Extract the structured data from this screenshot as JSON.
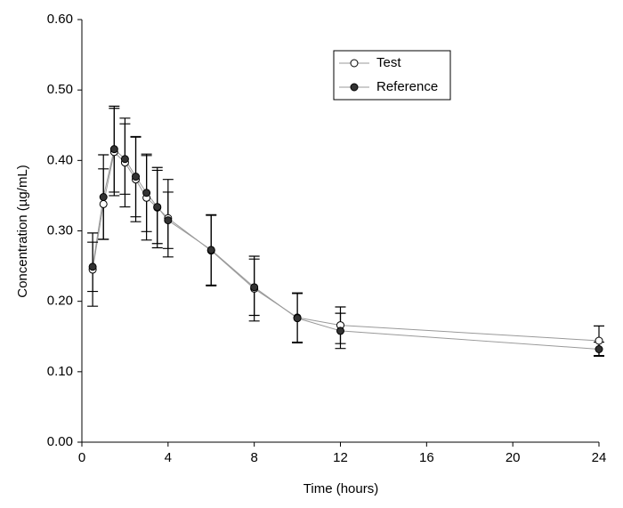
{
  "chart_data": {
    "type": "line",
    "x_label": "Time (hours)",
    "y_label": "Concentration (µg/mL)",
    "x": [
      0.5,
      1,
      1.5,
      2,
      2.5,
      3,
      3.5,
      4,
      6,
      8,
      10,
      12,
      24
    ],
    "series": [
      {
        "name": "Test",
        "color": "#ffffff",
        "line_color": "#999999",
        "values": [
          0.245,
          0.338,
          0.412,
          0.397,
          0.373,
          0.347,
          0.333,
          0.318,
          0.272,
          0.218,
          0.177,
          0.166,
          0.144
        ],
        "errors": [
          0.052,
          0.05,
          0.062,
          0.063,
          0.06,
          0.06,
          0.057,
          0.055,
          0.05,
          0.046,
          0.035,
          0.026,
          0.021
        ]
      },
      {
        "name": "Reference",
        "color": "#333333",
        "line_color": "#999999",
        "values": [
          0.249,
          0.348,
          0.416,
          0.402,
          0.377,
          0.354,
          0.334,
          0.315,
          0.273,
          0.22,
          0.176,
          0.158,
          0.132
        ],
        "errors": [
          0.035,
          0.06,
          0.061,
          0.05,
          0.057,
          0.055,
          0.052,
          0.04,
          0.05,
          0.04,
          0.035,
          0.025,
          0.01
        ]
      }
    ],
    "xlim": [
      0,
      24
    ],
    "xticks": [
      0,
      4,
      8,
      12,
      16,
      20,
      24
    ],
    "ylim": [
      0,
      0.6
    ],
    "yticks": [
      {
        "value": 0,
        "label": "0.00"
      },
      {
        "value": 0.1,
        "label": "0.10"
      },
      {
        "value": 0.2,
        "label": "0.20"
      },
      {
        "value": 0.3,
        "label": "0.30"
      },
      {
        "value": 0.4,
        "label": "0.40"
      },
      {
        "value": 0.5,
        "label": "0.50"
      },
      {
        "value": 0.6,
        "label": "0.60"
      }
    ],
    "grid": false,
    "legend": "upper right"
  }
}
